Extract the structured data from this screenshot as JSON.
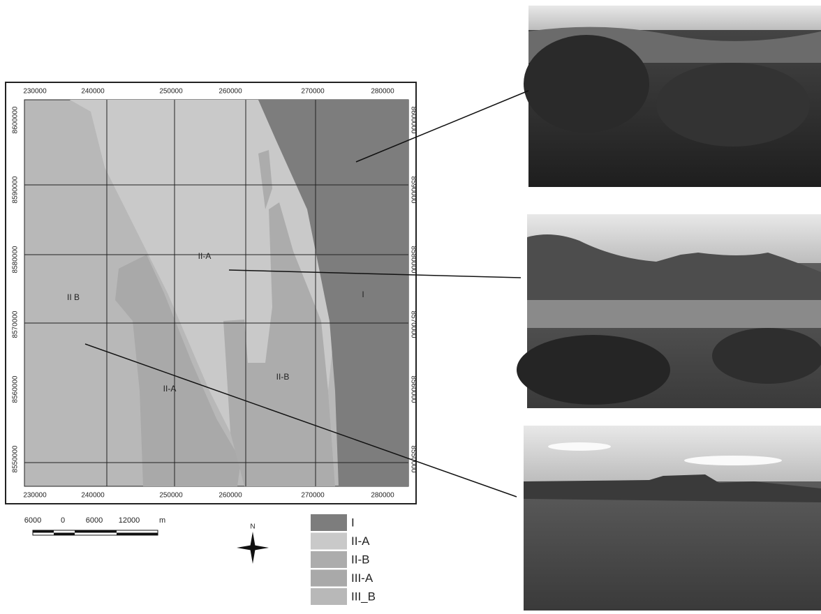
{
  "map": {
    "top_labels": [
      "230000",
      "240000",
      "250000",
      "260000",
      "270000",
      "280000"
    ],
    "bottom_labels": [
      "230000",
      "240000",
      "250000",
      "260000",
      "270000",
      "280000"
    ],
    "left_labels": [
      "8600000",
      "8590000",
      "8580000",
      "8570000",
      "8560000",
      "8550000"
    ],
    "right_labels": [
      "8600000",
      "8590000",
      "8580000",
      "8570000",
      "8560000",
      "8550000"
    ],
    "zone_labels": [
      "II-A",
      "II B",
      "I",
      "II-A",
      "II-B"
    ],
    "scale_labels": [
      "6000",
      "0",
      "6000",
      "12000",
      "m"
    ],
    "north": "N",
    "legend": [
      "I",
      "II-A",
      "II-B",
      "III-A",
      "III_B"
    ]
  }
}
